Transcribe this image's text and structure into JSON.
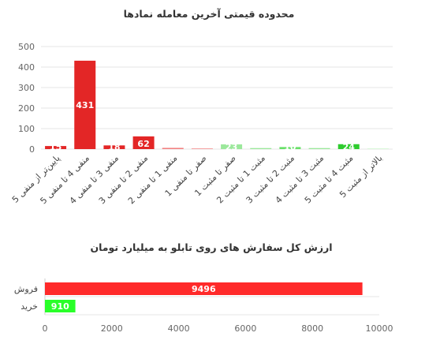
{
  "chart_data": [
    {
      "type": "bar",
      "title": "محدوده قیمتی آخرین معامله نمادها",
      "xlabel": "",
      "ylabel": "",
      "ylim": [
        0,
        500
      ],
      "yticks": [
        "0",
        "100",
        "200",
        "300",
        "400",
        "500"
      ],
      "grid": true,
      "categories": [
        "پایین‌تر از منفی 5",
        "منفی 4 تا منفی 5",
        "منفی 3 تا منفی 4",
        "منفی 2 تا منفی 3",
        "منفی 1 تا منفی 2",
        "صفر تا منفی 1",
        "صفر تا مثبت 1",
        "مثبت 1 تا مثبت 2",
        "مثبت 2 تا مثبت 3",
        "مثبت 3 تا مثبت 4",
        "مثبت 4 تا مثبت 5",
        "بالاتر از مثبت 5"
      ],
      "values": [
        15,
        431,
        18,
        62,
        6,
        4,
        23,
        5,
        10,
        5,
        24,
        2
      ],
      "data_labels": [
        "15",
        "431",
        "18",
        "62",
        "",
        "",
        "23",
        "",
        "10",
        "",
        "24",
        ""
      ],
      "colors": [
        "#e32626",
        "#e32626",
        "#e32626",
        "#e32626",
        "#f28080",
        "#f5a3a3",
        "#9be89b",
        "#9be89b",
        "#66e066",
        "#9be89b",
        "#2ecc2e",
        "#b9f0b9"
      ]
    },
    {
      "type": "bar",
      "orientation": "horizontal",
      "title": "ارزش کل سفارش های روی تابلو به میلیارد تومان",
      "xlabel": "",
      "ylabel": "",
      "xlim": [
        0,
        10000
      ],
      "xticks": [
        "0",
        "2000",
        "4000",
        "6000",
        "8000",
        "10000"
      ],
      "categories": [
        "فروش",
        "خرید"
      ],
      "values": [
        9496,
        910
      ],
      "data_labels": [
        "9496",
        "910"
      ],
      "colors": [
        "#ff2a2a",
        "#29ff29"
      ]
    }
  ]
}
